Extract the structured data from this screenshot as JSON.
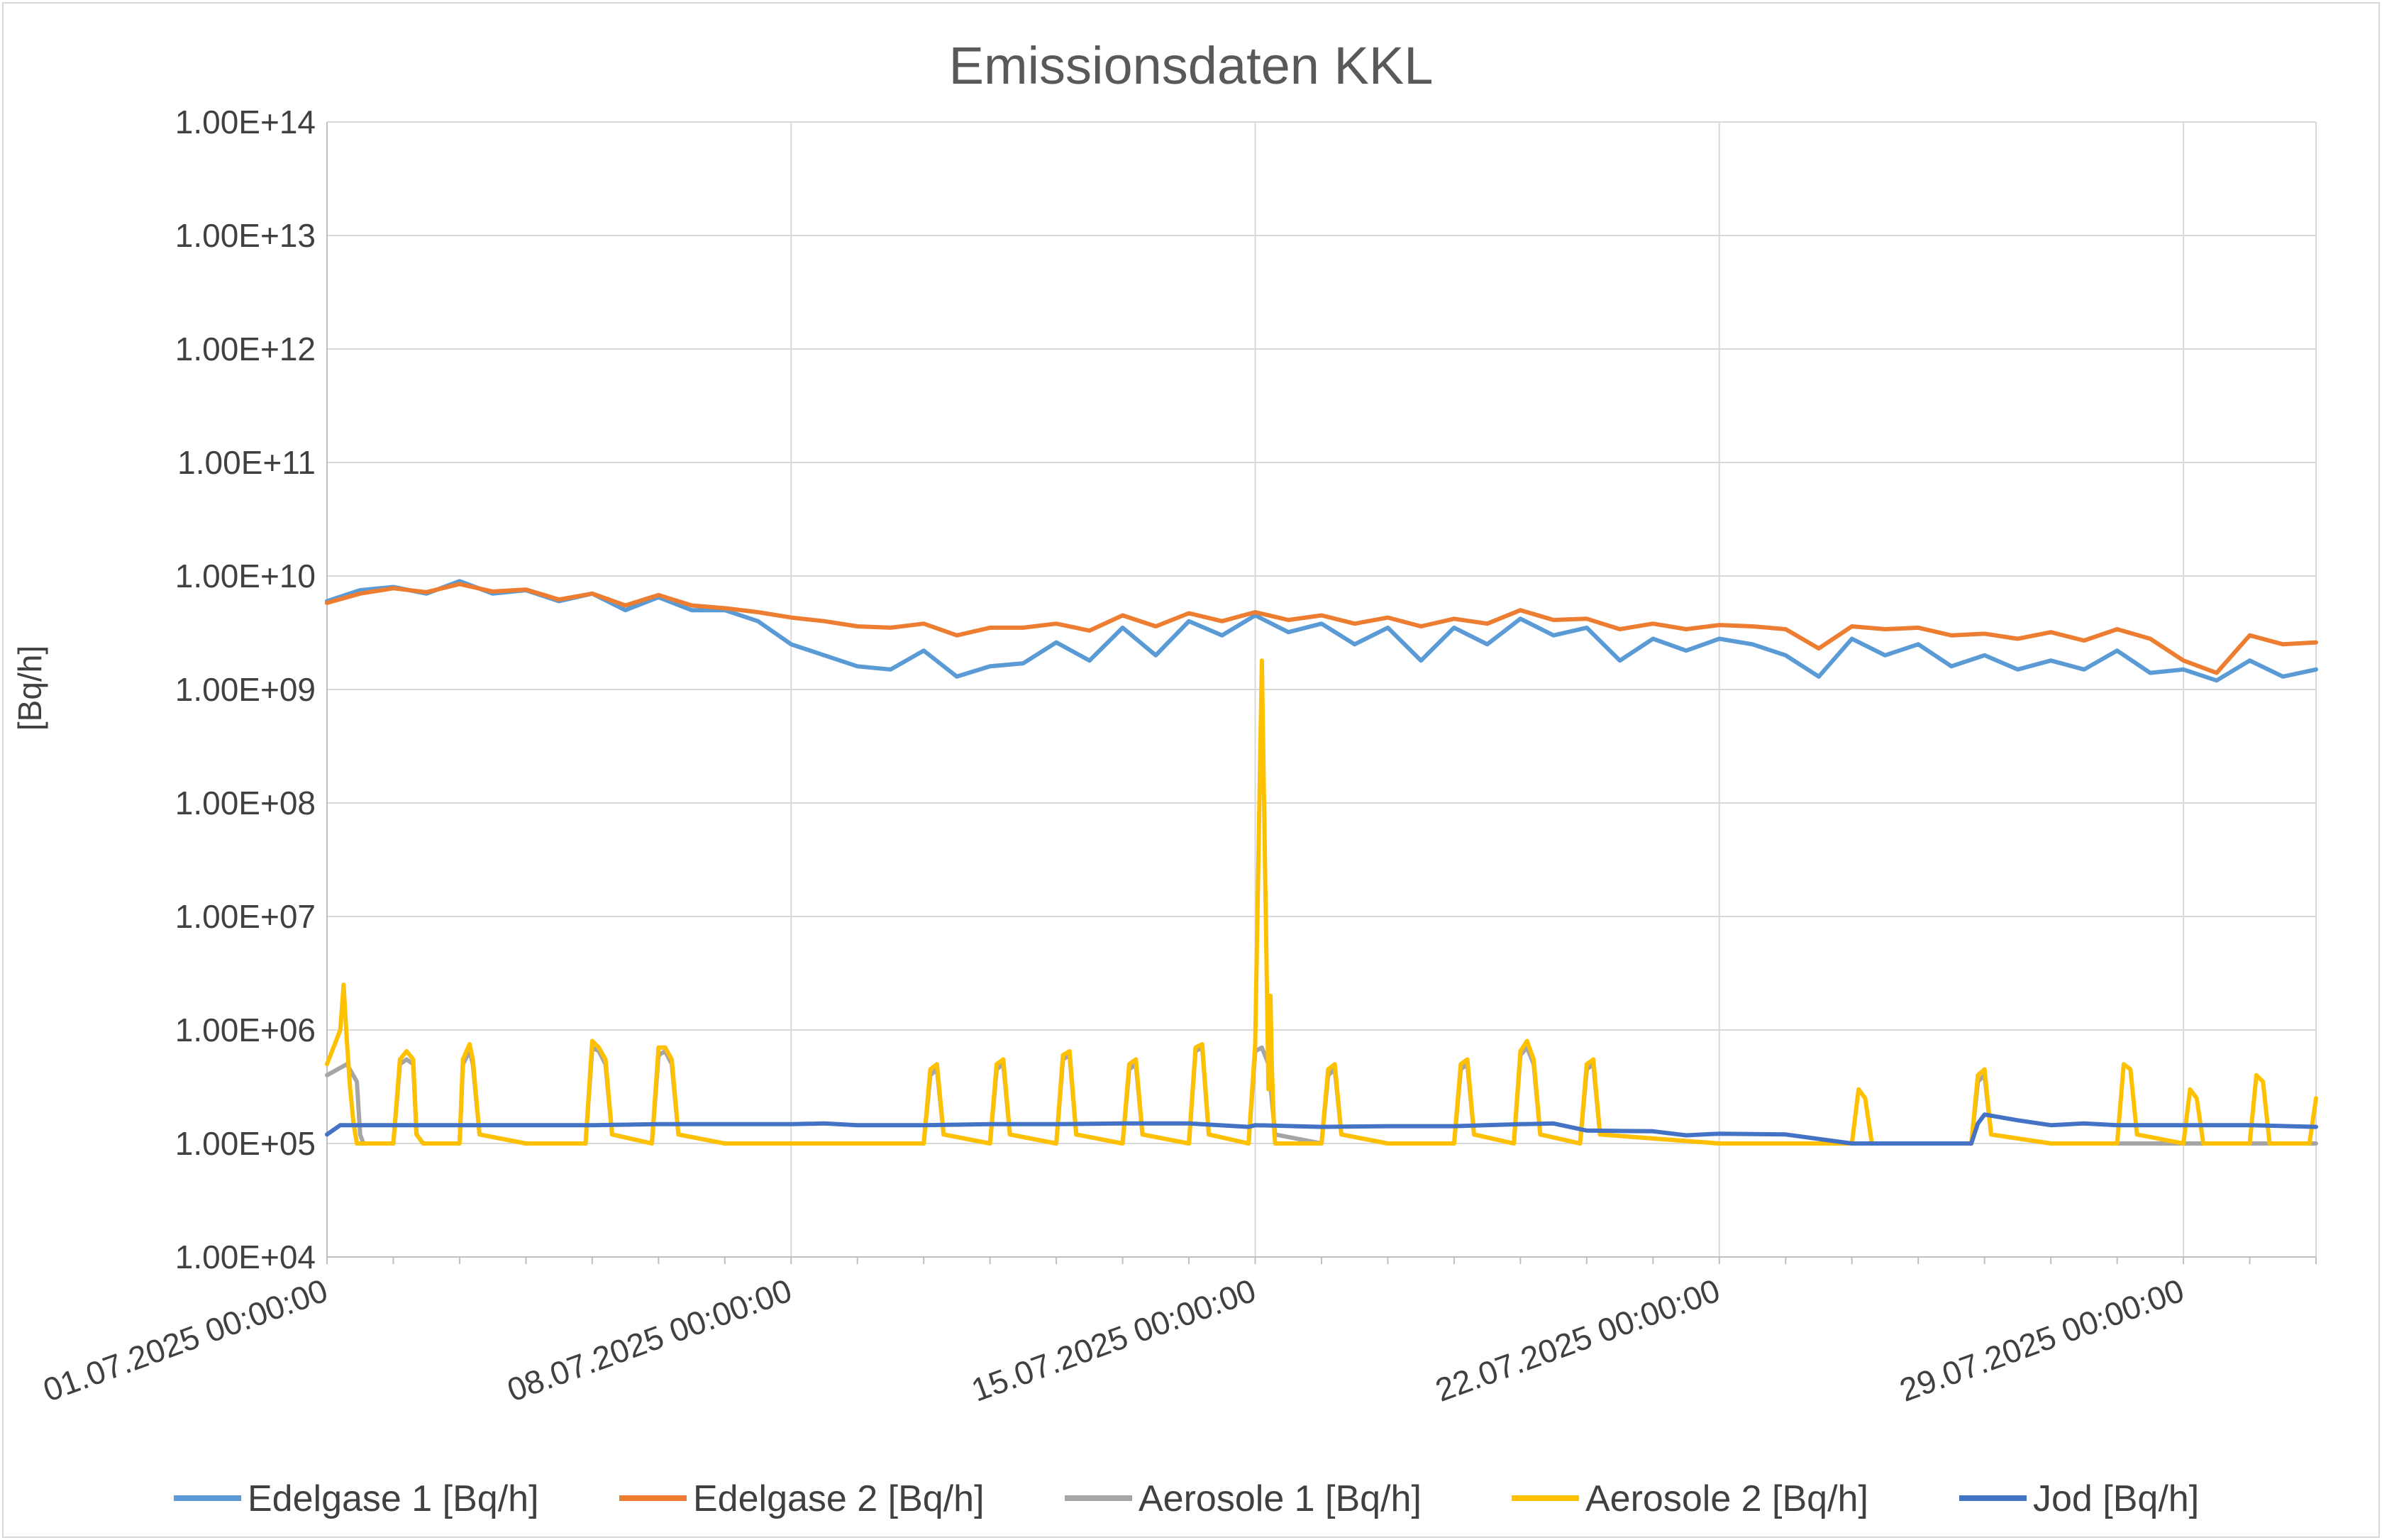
{
  "chart_data": {
    "type": "line",
    "title": "Emissionsdaten KKL",
    "ylabel": "[Bq/h]",
    "xlabel": "",
    "yscale": "log",
    "ylim": [
      10000,
      100000000000000
    ],
    "ytick_values": [
      10000,
      100000,
      1000000,
      10000000,
      100000000,
      1000000000,
      10000000000,
      100000000000,
      1000000000000,
      10000000000000,
      100000000000000
    ],
    "yticks": [
      "1.00E+04",
      "1.00E+05",
      "1.00E+06",
      "1.00E+07",
      "1.00E+08",
      "1.00E+09",
      "1.00E+10",
      "1.00E+11",
      "1.00E+12",
      "1.00E+13",
      "1.00E+14"
    ],
    "xlim_days": [
      0,
      30
    ],
    "xtick_days": [
      0,
      7,
      14,
      21,
      28
    ],
    "xticks": [
      "01.07.2025 00:00:00",
      "08.07.2025 00:00:00",
      "15.07.2025 00:00:00",
      "22.07.2025 00:00:00",
      "29.07.2025 00:00:00"
    ],
    "grid": true,
    "legend_position": "bottom",
    "series": [
      {
        "name": "Edelgase 1 [Bq/h]",
        "color": "#5b9bd5",
        "x_days": [
          0,
          0.5,
          1,
          1.5,
          2,
          2.5,
          3,
          3.5,
          4,
          4.5,
          5,
          5.5,
          6,
          6.5,
          7,
          7.5,
          8,
          8.5,
          9,
          9.5,
          10,
          10.5,
          11,
          11.5,
          12,
          12.5,
          13,
          13.5,
          14,
          14.5,
          15,
          15.5,
          16,
          16.5,
          17,
          17.5,
          18,
          18.5,
          19,
          19.5,
          20,
          20.5,
          21,
          21.5,
          22,
          22.5,
          23,
          23.5,
          24,
          24.5,
          25,
          25.5,
          26,
          26.5,
          27,
          27.5,
          28,
          28.5,
          29,
          29.5,
          30
        ],
        "values": [
          6000000000,
          7500000000,
          8000000000,
          7000000000,
          9000000000,
          7000000000,
          7500000000,
          6000000000,
          7000000000,
          5000000000,
          6500000000,
          5000000000,
          5000000000,
          4000000000,
          2500000000,
          2000000000,
          1600000000,
          1500000000,
          2200000000,
          1300000000,
          1600000000,
          1700000000,
          2600000000,
          1800000000,
          3500000000,
          2000000000,
          4000000000,
          3000000000,
          4500000000,
          3200000000,
          3800000000,
          2500000000,
          3500000000,
          1800000000,
          3500000000,
          2500000000,
          4200000000,
          3000000000,
          3500000000,
          1800000000,
          2800000000,
          2200000000,
          2800000000,
          2500000000,
          2000000000,
          1300000000,
          2800000000,
          2000000000,
          2500000000,
          1600000000,
          2000000000,
          1500000000,
          1800000000,
          1500000000,
          2200000000,
          1400000000,
          1500000000,
          1200000000,
          1800000000,
          1300000000,
          1500000000
        ]
      },
      {
        "name": "Edelgase 2 [Bq/h]",
        "color": "#ed7d31",
        "x_days": [
          0,
          0.5,
          1,
          1.5,
          2,
          2.5,
          3,
          3.5,
          4,
          4.5,
          5,
          5.5,
          6,
          6.5,
          7,
          7.5,
          8,
          8.5,
          9,
          9.5,
          10,
          10.5,
          11,
          11.5,
          12,
          12.5,
          13,
          13.5,
          14,
          14.5,
          15,
          15.5,
          16,
          16.5,
          17,
          17.5,
          18,
          18.5,
          19,
          19.5,
          20,
          20.5,
          21,
          21.5,
          22,
          22.5,
          23,
          23.5,
          24,
          24.5,
          25,
          25.5,
          26,
          26.5,
          27,
          27.5,
          28,
          28.5,
          29,
          29.5,
          30
        ],
        "values": [
          5800000000,
          7000000000,
          7800000000,
          7200000000,
          8500000000,
          7300000000,
          7600000000,
          6200000000,
          7000000000,
          5500000000,
          6800000000,
          5500000000,
          5200000000,
          4800000000,
          4300000000,
          4000000000,
          3600000000,
          3500000000,
          3800000000,
          3000000000,
          3500000000,
          3500000000,
          3800000000,
          3300000000,
          4500000000,
          3600000000,
          4700000000,
          4000000000,
          4800000000,
          4100000000,
          4500000000,
          3800000000,
          4300000000,
          3600000000,
          4200000000,
          3800000000,
          5000000000,
          4100000000,
          4200000000,
          3400000000,
          3800000000,
          3400000000,
          3700000000,
          3600000000,
          3400000000,
          2300000000,
          3600000000,
          3400000000,
          3500000000,
          3000000000,
          3100000000,
          2800000000,
          3200000000,
          2700000000,
          3400000000,
          2800000000,
          1800000000,
          1400000000,
          3000000000,
          2500000000,
          2600000000
        ]
      },
      {
        "name": "Aerosole 1 [Bq/h]",
        "color": "#a5a5a5",
        "x_days": [
          0,
          0.3,
          0.45,
          0.5,
          0.55,
          1,
          1.1,
          1.2,
          1.3,
          1.35,
          1.45,
          1.5,
          2,
          2.05,
          2.15,
          2.2,
          2.3,
          3,
          3.9,
          4,
          4.1,
          4.2,
          4.3,
          4.9,
          5,
          5.1,
          5.2,
          5.3,
          6,
          9,
          9.1,
          9.2,
          9.3,
          10,
          10.1,
          10.2,
          10.3,
          11,
          11.1,
          11.2,
          11.3,
          12,
          12.1,
          12.2,
          12.3,
          13,
          13.1,
          13.2,
          13.3,
          13.9,
          14,
          14.1,
          14.2,
          14.3,
          15,
          15.1,
          15.2,
          15.3,
          16,
          17,
          17.1,
          17.2,
          17.3,
          17.9,
          18,
          18.1,
          18.2,
          18.3,
          18.9,
          19,
          19.1,
          19.2,
          21,
          22,
          24,
          24.8,
          24.9,
          25,
          25.1,
          26,
          30
        ],
        "values": [
          400000,
          500000,
          350000,
          120000,
          100000,
          100000,
          500000,
          550000,
          500000,
          120000,
          100000,
          100000,
          100000,
          500000,
          650000,
          500000,
          120000,
          100000,
          100000,
          700000,
          650000,
          500000,
          120000,
          100000,
          600000,
          650000,
          500000,
          120000,
          100000,
          100000,
          400000,
          450000,
          120000,
          100000,
          450000,
          500000,
          120000,
          100000,
          550000,
          600000,
          120000,
          100000,
          450000,
          500000,
          120000,
          100000,
          650000,
          700000,
          120000,
          100000,
          650000,
          700000,
          500000,
          120000,
          100000,
          400000,
          450000,
          120000,
          100000,
          100000,
          450000,
          500000,
          120000,
          100000,
          600000,
          700000,
          500000,
          120000,
          100000,
          450000,
          500000,
          120000,
          100000,
          100000,
          100000,
          100000,
          350000,
          400000,
          120000,
          100000,
          100000
        ]
      },
      {
        "name": "Aerosole 2 [Bq/h]",
        "color": "#ffc000",
        "x_days": [
          0,
          0.2,
          0.25,
          0.3,
          0.35,
          0.4,
          0.45,
          1,
          1.1,
          1.2,
          1.3,
          1.35,
          1.45,
          1.5,
          2,
          2.05,
          2.15,
          2.2,
          2.3,
          3,
          3.9,
          4,
          4.1,
          4.2,
          4.3,
          4.9,
          5,
          5.1,
          5.2,
          5.3,
          6,
          9,
          9.1,
          9.2,
          9.3,
          10,
          10.1,
          10.2,
          10.3,
          11,
          11.1,
          11.2,
          11.3,
          12,
          12.1,
          12.2,
          12.3,
          13,
          13.1,
          13.2,
          13.3,
          13.9,
          14,
          14.1,
          14.2,
          14.23,
          14.25,
          14.28,
          14.3,
          14.35,
          14.4,
          15,
          15.1,
          15.2,
          15.3,
          16,
          17,
          17.1,
          17.2,
          17.3,
          17.9,
          18,
          18.1,
          18.2,
          18.3,
          18.9,
          19,
          19.1,
          19.2,
          21,
          22,
          23,
          23.1,
          23.2,
          23.3,
          24,
          24.8,
          24.9,
          25,
          25.1,
          26,
          27,
          27.1,
          27.2,
          27.3,
          28,
          28.1,
          28.2,
          28.3,
          29,
          29.1,
          29.2,
          29.3,
          29.9,
          30
        ],
        "values": [
          500000,
          1000000,
          2500000,
          800000,
          300000,
          150000,
          100000,
          100000,
          550000,
          650000,
          550000,
          120000,
          100000,
          100000,
          100000,
          550000,
          750000,
          550000,
          120000,
          100000,
          100000,
          800000,
          700000,
          550000,
          120000,
          100000,
          700000,
          700000,
          550000,
          120000,
          100000,
          100000,
          450000,
          500000,
          120000,
          100000,
          500000,
          550000,
          120000,
          100000,
          600000,
          650000,
          120000,
          100000,
          500000,
          550000,
          120000,
          100000,
          700000,
          750000,
          120000,
          100000,
          750000,
          1800000000,
          300000,
          2000000,
          500000,
          150000,
          100000,
          100000,
          100000,
          100000,
          450000,
          500000,
          120000,
          100000,
          100000,
          500000,
          550000,
          120000,
          100000,
          650000,
          800000,
          550000,
          120000,
          100000,
          500000,
          550000,
          120000,
          100000,
          100000,
          100000,
          300000,
          250000,
          100000,
          100000,
          100000,
          400000,
          450000,
          120000,
          100000,
          100000,
          500000,
          450000,
          120000,
          100000,
          300000,
          250000,
          100000,
          100000,
          400000,
          350000,
          100000,
          100000,
          250000
        ]
      },
      {
        "name": "Jod [Bq/h]",
        "color": "#4472c4",
        "x_days": [
          0,
          0.2,
          1,
          2,
          3,
          4,
          5,
          6,
          7,
          7.5,
          8,
          8.5,
          9,
          10,
          11,
          12,
          13,
          13.9,
          14,
          15,
          16,
          17,
          18,
          18.5,
          19,
          20,
          20.5,
          21,
          22,
          23,
          24,
          24.8,
          24.9,
          25,
          25.5,
          26,
          26.5,
          27,
          28,
          29,
          30
        ],
        "values": [
          120000,
          145000,
          145000,
          145000,
          145000,
          145000,
          148000,
          148000,
          148000,
          150000,
          145000,
          145000,
          145000,
          148000,
          148000,
          150000,
          150000,
          140000,
          145000,
          140000,
          142000,
          142000,
          148000,
          150000,
          130000,
          128000,
          118000,
          122000,
          120000,
          100000,
          100000,
          100000,
          150000,
          180000,
          160000,
          145000,
          150000,
          145000,
          145000,
          145000,
          140000
        ]
      }
    ]
  }
}
